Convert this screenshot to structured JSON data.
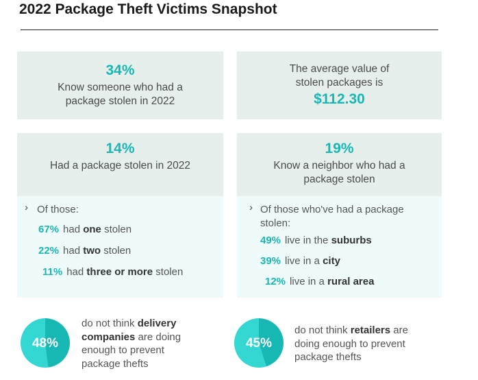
{
  "title": "2022 Package Theft Victims Snapshot",
  "card1": {
    "stat": "34%",
    "line1": "Know someone who had a",
    "line2": "package stolen in 2022"
  },
  "card2": {
    "line1": "The average value of",
    "line2": "stolen packages is",
    "stat": "$112.30"
  },
  "card3": {
    "stat": "14%",
    "line1": "Had a package stolen in 2022"
  },
  "card4": {
    "stat": "19%",
    "line1": "Know a neighbor who had a",
    "line2": "package stolen"
  },
  "left_list": {
    "intro": "Of those:",
    "items": [
      {
        "pct": "67%",
        "pre": "had ",
        "bold": "one",
        "post": " stolen"
      },
      {
        "pct": "22%",
        "pre": "had ",
        "bold": "two",
        "post": " stolen"
      },
      {
        "pct": "11%",
        "pre": "had ",
        "bold": "three or more",
        "post": " stolen"
      }
    ]
  },
  "right_list": {
    "intro_line1": "Of those who've had a package",
    "intro_line2": "stolen:",
    "items": [
      {
        "pct": "49%",
        "pre": "live in the ",
        "bold": "suburbs"
      },
      {
        "pct": "39%",
        "pre": "live in a ",
        "bold": "city"
      },
      {
        "pct": "12%",
        "pre": "live in a ",
        "bold": "rural area"
      }
    ]
  },
  "donut_left": {
    "value": 48,
    "label": "48%",
    "l1_pre": "do not think ",
    "l1_bold": "delivery",
    "l2_bold": "companies",
    "l2_post": " are doing",
    "l3": "enough to prevent",
    "l4": "package thefts"
  },
  "donut_right": {
    "value": 45,
    "label": "45%",
    "l1_pre": "do not think ",
    "l1_bold": "retailers",
    "l1_post": " are",
    "l2": "doing enough to prevent",
    "l3": "package thefts"
  },
  "colors": {
    "accent": "#17b8b4",
    "accent_light": "#34d6d2",
    "card_bg": "#e7efed",
    "sub_bg": "#effafa"
  }
}
